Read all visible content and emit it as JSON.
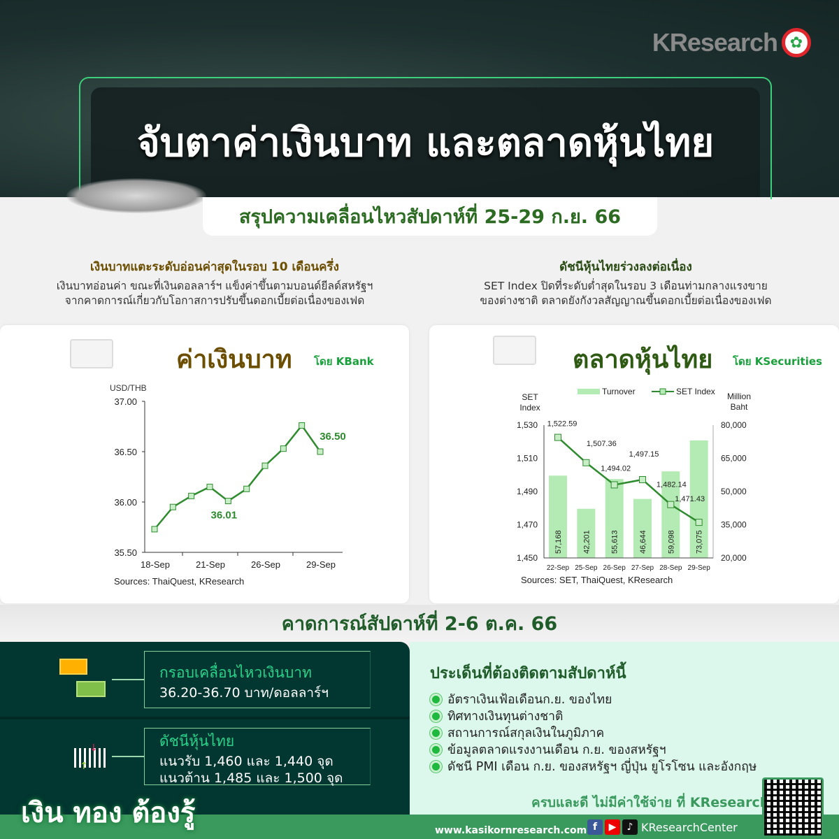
{
  "header": {
    "logo_text": "KResearch",
    "title": "จับตาค่าเงินบาท และตลาดหุ้นไทย",
    "subtitle": "สรุปความเคลื่อนไหวสัปดาห์ที่ 25-29 ก.ย. 66"
  },
  "left_summary": {
    "heading": "เงินบาทแตะระดับอ่อนค่าสุดในรอบ 10 เดือนครึ่ง",
    "lines": [
      "เงินบาทอ่อนค่า ขณะที่เงินดอลลาร์ฯ แข็งค่าขึ้นตามบอนด์ยีลด์สหรัฐฯ",
      "จากคาดการณ์เกี่ยวกับโอกาสการปรับขึ้นดอกเบี้ยต่อเนื่องของเฟด"
    ]
  },
  "right_summary": {
    "heading": "ดัชนีหุ้นไทยร่วงลงต่อเนื่อง",
    "lines": [
      "SET Index ปิดที่ระดับต่ำสุดในรอบ 3 เดือนท่ามกลางแรงขาย",
      "ของต่างชาติ ตลาดยังกังวลสัญญาณขึ้นดอกเบี้ยต่อเนื่องของเฟด"
    ]
  },
  "left_card": {
    "title": "ค่าเงินบาท",
    "by": "โดย KBank"
  },
  "right_card": {
    "title": "ตลาดหุ้นไทย",
    "by": "โดย KSecurities"
  },
  "chart_data": [
    {
      "type": "line",
      "ylabel": "USD/THB",
      "ylim": [
        35.5,
        37.0
      ],
      "yticks": [
        "37.00",
        "36.50",
        "36.00",
        "35.50"
      ],
      "xtick_labels": [
        "18-Sep",
        "21-Sep",
        "26-Sep",
        "29-Sep"
      ],
      "x": [
        "18-Sep",
        "19-Sep",
        "20-Sep",
        "21-Sep",
        "22-Sep",
        "25-Sep",
        "26-Sep",
        "27-Sep",
        "28-Sep",
        "29-Sep"
      ],
      "values": [
        35.73,
        35.95,
        36.06,
        36.15,
        36.01,
        36.13,
        36.36,
        36.53,
        36.76,
        36.5
      ],
      "annotations": [
        {
          "x": "22-Sep",
          "label": "36.01"
        },
        {
          "x": "29-Sep",
          "label": "36.50"
        }
      ],
      "source": "Sources: ThaiQuest, KResearch",
      "color": "#2e8b2e"
    },
    {
      "type": "bar+line",
      "categories": [
        "22-Sep",
        "25-Sep",
        "26-Sep",
        "27-Sep",
        "28-Sep",
        "29-Sep"
      ],
      "series": [
        {
          "name": "Turnover",
          "type": "bar",
          "axis": "right",
          "values": [
            57168,
            42201,
            55613,
            46644,
            59098,
            73075
          ],
          "labels": [
            "57,168",
            "42,201",
            "55,613",
            "46,644",
            "59,098",
            "73,075"
          ],
          "color": "#b4eab4"
        },
        {
          "name": "SET Index",
          "type": "line",
          "axis": "left",
          "values": [
            1522.59,
            1507.36,
            1494.02,
            1497.15,
            1482.14,
            1471.43
          ],
          "labels": [
            "1,522.59",
            "1,507.36",
            "1,494.02",
            "1,497.15",
            "1,482.14",
            "1,471.43"
          ],
          "color": "#2e8b2e"
        }
      ],
      "ylabel_left": [
        "SET",
        "Index"
      ],
      "ylabel_right": [
        "Million",
        "Baht"
      ],
      "ylim_left": [
        1450,
        1530
      ],
      "ylim_right": [
        20000,
        80000
      ],
      "yticks_left": [
        "1,530",
        "1,510",
        "1,490",
        "1,470",
        "1,450"
      ],
      "yticks_right": [
        "80,000",
        "65,000",
        "50,000",
        "35,000",
        "20,000"
      ],
      "legend": "top",
      "source": "Sources: SET, ThaiQuest, KResearch"
    }
  ],
  "forecast": {
    "title": "คาดการณ์สัปดาห์ที่ 2-6 ต.ค. 66",
    "baht": {
      "title": "กรอบเคลื่อนไหวเงินบาท",
      "range": "36.20-36.70 บาท/ดอลลาร์ฯ"
    },
    "set": {
      "title": "ดัชนีหุ้นไทย",
      "support": "แนวรับ 1,460 และ 1,440 จุด",
      "resistance": "แนวต้าน 1,485 และ 1,500 จุด"
    }
  },
  "issues": {
    "title": "ประเด็นที่ต้องติดตามสัปดาห์นี้",
    "items": [
      "อัตราเงินเฟ้อเดือนก.ย. ของไทย",
      "ทิศทางเงินทุนต่างชาติ",
      "สถานการณ์สกุลเงินในภูมิภาค",
      "ข้อมูลตลาดแรงงานเดือน ก.ย. ของสหรัฐฯ",
      "ดัชนี PMI เดือน ก.ย. ของสหรัฐฯ ญี่ปุ่น ยูโรโซน และอังกฤษ"
    ]
  },
  "footer": {
    "brand": "เงิน ทอง ต้องรู้",
    "tagline": "ครบและดี ไม่มีค่าใช้จ่าย ที่ KResearch",
    "url": "www.kasikornresearch.com",
    "social_handle": "KResearchCenter",
    "icons": [
      "facebook-icon",
      "youtube-icon",
      "tiktok-icon",
      "qr-code-icon"
    ]
  }
}
